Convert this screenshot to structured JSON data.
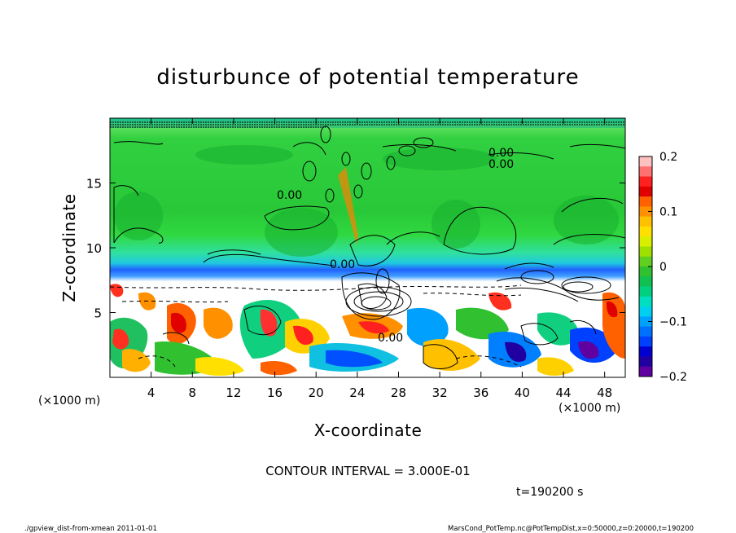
{
  "chart_data": {
    "type": "heatmap",
    "title": "disturbunce of potential temperature",
    "xlabel": "X-coordinate",
    "ylabel": "Z-coordinate",
    "x_unit": "(×1000 m)",
    "y_unit": "(×1000 m)",
    "xlim": [
      0,
      50
    ],
    "ylim": [
      0,
      20
    ],
    "x_ticks": [
      4,
      8,
      12,
      16,
      20,
      24,
      28,
      32,
      36,
      40,
      44,
      48
    ],
    "y_ticks": [
      5,
      10,
      15
    ],
    "colorbar": {
      "range": [
        -0.2,
        0.2
      ],
      "ticks": [
        {
          "value": 0.2,
          "label": "0.2"
        },
        {
          "value": 0.1,
          "label": "0.1"
        },
        {
          "value": 0,
          "label": "0"
        },
        {
          "value": -0.1,
          "label": "−0.1"
        },
        {
          "value": -0.2,
          "label": "−0.2"
        }
      ],
      "colors": [
        "#ffc0c0",
        "#ff7070",
        "#ff2020",
        "#e00000",
        "#ff6000",
        "#ff9000",
        "#ffc000",
        "#ffe000",
        "#d8f000",
        "#a0e000",
        "#60d020",
        "#30c030",
        "#10c050",
        "#00d080",
        "#00e0c0",
        "#00d0f0",
        "#00a0ff",
        "#0070ff",
        "#0040ff",
        "#0000d0",
        "#2000a0",
        "#6000a0"
      ]
    },
    "contour_labels": [
      "0.00",
      "0.00",
      "0.00",
      "0.00",
      "0.00"
    ],
    "contour_interval": "CONTOUR INTERVAL = 3.000E-01",
    "time": "t=190200 s"
  },
  "footer": {
    "left": "./gpview_dist-from-xmean  2011-01-01",
    "right": "MarsCond_PotTemp.nc@PotTempDist,x=0:50000,z=0:20000,t=190200"
  },
  "colors": {
    "background_field": "#40d040",
    "band_blue": "#1070ff",
    "band_cyan": "#20e0e0"
  }
}
